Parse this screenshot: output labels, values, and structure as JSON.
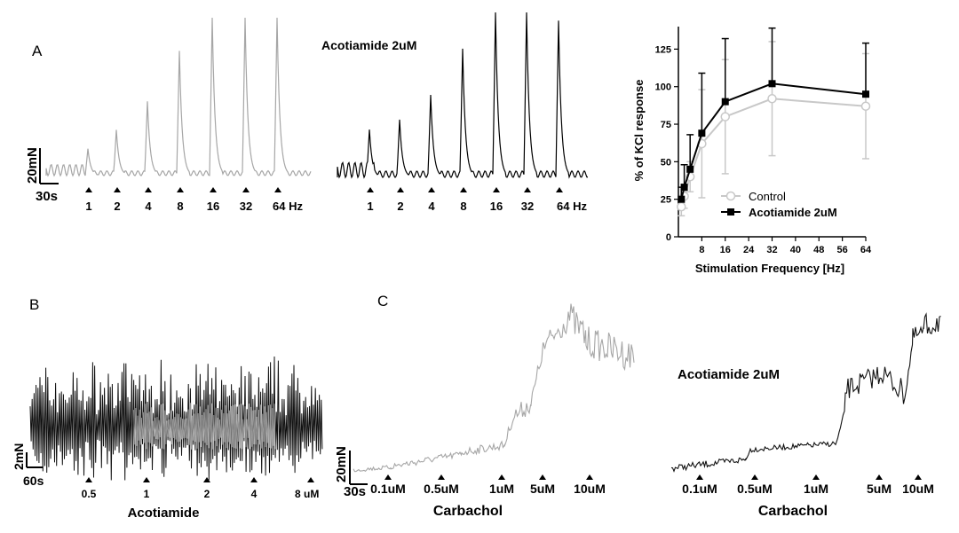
{
  "panel_labels": {
    "a": "A",
    "b": "B",
    "c": "C"
  },
  "panel_a": {
    "control_trace": {
      "scale_force": "20mN",
      "scale_time": "30s",
      "frequencies": [
        "1",
        "2",
        "4",
        "8",
        "16",
        "32"
      ],
      "last_frequency": "64 Hz",
      "peak_fraction": [
        0.17,
        0.29,
        0.47,
        0.79,
        1.0,
        1.0,
        1.0
      ],
      "color": "#a6a6a6"
    },
    "acotiamide_trace": {
      "title": "Acotiamide 2uM",
      "frequencies": [
        "1",
        "2",
        "4",
        "8",
        "16",
        "32"
      ],
      "last_frequency": "64 Hz",
      "peak_fraction": [
        0.29,
        0.35,
        0.5,
        0.78,
        1.0,
        1.0,
        0.95
      ],
      "color": "#000000"
    }
  },
  "chart_data": {
    "type": "line",
    "xlabel": "Stimulation Frequency [Hz]",
    "ylabel": "% of KCl response",
    "xlim": [
      0,
      64
    ],
    "ylim": [
      0,
      140
    ],
    "xticks": [
      "8",
      "16",
      "24",
      "32",
      "40",
      "48",
      "56",
      "64"
    ],
    "yticks": [
      "0",
      "25",
      "50",
      "75",
      "100",
      "125"
    ],
    "legend_position": "lower-right",
    "series": [
      {
        "name": "Control",
        "marker": "open-circle",
        "color": "#c8c8c8",
        "x": [
          1,
          2,
          4,
          8,
          16,
          32,
          64
        ],
        "y": [
          20,
          27,
          40,
          62,
          80,
          92,
          87
        ],
        "error": [
          6,
          8,
          10,
          36,
          38,
          38,
          35
        ]
      },
      {
        "name": "Acotiamide 2uM",
        "marker": "filled-square",
        "color": "#000000",
        "x": [
          1,
          2,
          4,
          8,
          16,
          32,
          64
        ],
        "y": [
          25,
          33,
          45,
          69,
          90,
          102,
          95
        ],
        "error": [
          8,
          15,
          23,
          40,
          42,
          37,
          34
        ]
      }
    ]
  },
  "panel_b": {
    "scale_force": "2mN",
    "scale_time": "60s",
    "concentrations": [
      "0.5",
      "1",
      "2",
      "4"
    ],
    "last_concentration": "8 uM",
    "drug_label": "Acotiamide"
  },
  "panel_c": {
    "control_trace": {
      "scale_force": "20mN",
      "scale_time": "30s",
      "concentrations": [
        "0.1uM",
        "0.5uM",
        "1uM",
        "5uM",
        "10uM"
      ],
      "drug_label": "Carbachol",
      "color": "#a6a6a6"
    },
    "acotiamide_trace": {
      "title": "Acotiamide 2uM",
      "concentrations": [
        "0.1uM",
        "0.5uM",
        "1uM",
        "5uM",
        "10uM"
      ],
      "drug_label": "Carbachol",
      "color": "#000000"
    }
  }
}
